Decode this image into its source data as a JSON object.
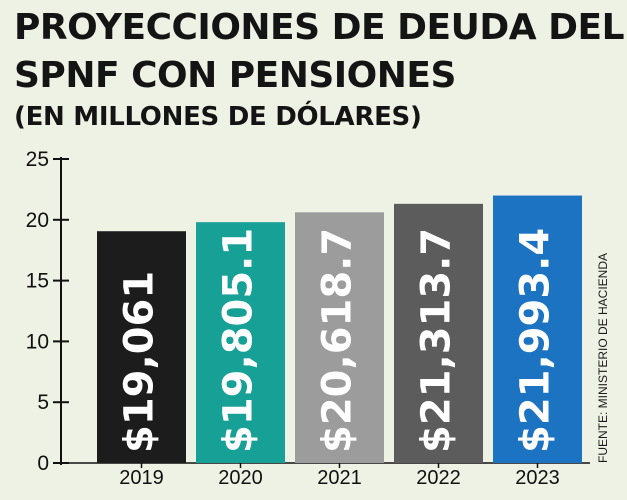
{
  "chart_data": {
    "type": "bar",
    "title": "PROYECCIONES DE DEUDA DEL SPNF CON PENSIONES",
    "subtitle": "(EN MILLONES DE DÓLARES)",
    "source": "FUENTE: MINISTERIO DE HACIENDA",
    "categories": [
      "2019",
      "2020",
      "2021",
      "2022",
      "2023"
    ],
    "values": [
      19061,
      19805.1,
      20618.7,
      21313.7,
      21993.4
    ],
    "data_labels": [
      "$19,061",
      "$19,805.1",
      "$20,618.7",
      "$21,313.7",
      "$21,993.4"
    ],
    "bar_colors": [
      "#1c1c1c",
      "#17a096",
      "#9c9c9c",
      "#5c5c5c",
      "#1c73c2"
    ],
    "y_ticks": [
      "0",
      "5",
      "10",
      "15",
      "20",
      "25"
    ],
    "y_scale_divisor": 1000,
    "ylim": [
      0,
      25
    ],
    "grid": false,
    "legend": "none"
  }
}
